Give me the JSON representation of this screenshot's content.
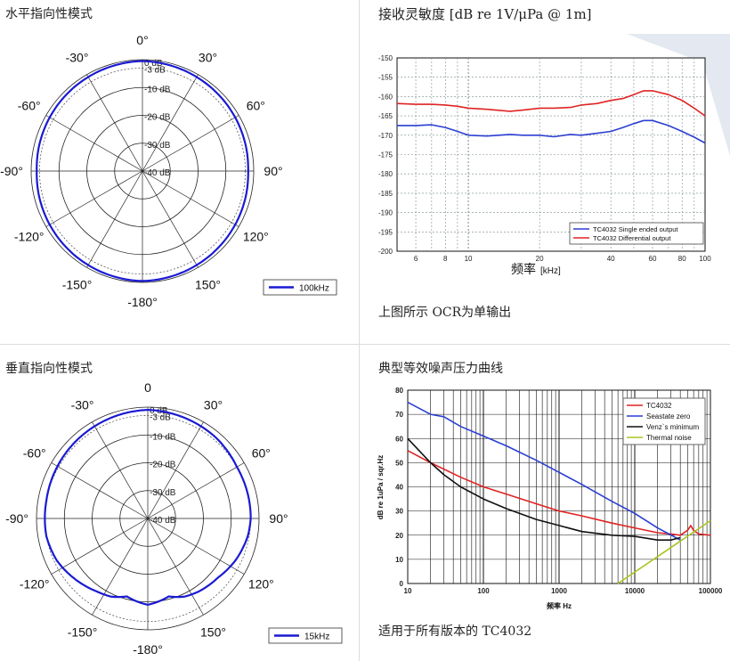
{
  "sections": {
    "horizontal": {
      "title": "水平指向性模式"
    },
    "sensitivity": {
      "title": "接收灵敏度 [dB re 1V/μPa @ 1m]",
      "caption": "上图所示 OCR为单输出"
    },
    "vertical": {
      "title": "垂直指向性模式"
    },
    "noise": {
      "title": "典型等效噪声压力曲线",
      "caption": "适用于所有版本的 TC4032"
    }
  },
  "chart_data": [
    {
      "type": "polar",
      "angle_labels": [
        "0°",
        "30°",
        "60°",
        "90°",
        "120°",
        "150°",
        "-180°",
        "-150°",
        "-120°",
        "-90°",
        "-60°",
        "-30°"
      ],
      "radial_labels": [
        "0 dB",
        "-3 dB",
        "-10 dB",
        "-20 dB",
        "-30 dB",
        "-40 dB"
      ],
      "rlim": [
        -40,
        0
      ],
      "series": [
        {
          "name": "100kHz",
          "color": "#1a1ad4",
          "angles": [
            0,
            30,
            60,
            90,
            120,
            150,
            180,
            210,
            240,
            270,
            300,
            330
          ],
          "values": [
            -0.5,
            -1,
            -1.5,
            -2,
            -1.5,
            -1,
            -0.5,
            -1,
            -1.5,
            -2,
            -1.5,
            -1
          ]
        }
      ]
    },
    {
      "type": "line",
      "x_scale": "log",
      "xlim": [
        5,
        100
      ],
      "ylim": [
        -200,
        -150
      ],
      "x_ticks": [
        6,
        8,
        10,
        20,
        40,
        60,
        80,
        100
      ],
      "y_ticks": [
        -150,
        -155,
        -160,
        -165,
        -170,
        -175,
        -180,
        -185,
        -190,
        -195,
        -200
      ],
      "xlabel": "频率",
      "xlabel_unit": "[kHz]",
      "legend_position": "bottom-right",
      "series": [
        {
          "name": "TC4032 Single ended output",
          "color": "#2b3fd1",
          "x": [
            5,
            6,
            7,
            8,
            9,
            10,
            12,
            15,
            17,
            20,
            23,
            27,
            30,
            35,
            40,
            45,
            50,
            55,
            60,
            70,
            80,
            90,
            100
          ],
          "y": [
            -167.5,
            -167.5,
            -167.3,
            -168,
            -169,
            -170,
            -170.2,
            -169.8,
            -170,
            -170,
            -170.4,
            -169.8,
            -170,
            -169.5,
            -169,
            -168,
            -167,
            -166.2,
            -166.2,
            -167.5,
            -169,
            -170.5,
            -172
          ]
        },
        {
          "name": "TC4032 Differential output",
          "color": "#e02323",
          "x": [
            5,
            6,
            7,
            8,
            9,
            10,
            12,
            15,
            17,
            20,
            23,
            27,
            30,
            35,
            40,
            45,
            50,
            55,
            60,
            70,
            80,
            90,
            100
          ],
          "y": [
            -161.8,
            -162,
            -162,
            -162.2,
            -162.5,
            -163,
            -163.3,
            -163.8,
            -163.5,
            -163,
            -163,
            -162.8,
            -162.2,
            -161.8,
            -161,
            -160.5,
            -159.5,
            -158.5,
            -158.5,
            -159.5,
            -161,
            -163,
            -165
          ]
        }
      ]
    },
    {
      "type": "polar",
      "angle_labels": [
        "0",
        "30°",
        "60°",
        "90°",
        "120°",
        "150°",
        "-180°",
        "-150°",
        "-120°",
        "-90°",
        "-60°",
        "-30°"
      ],
      "radial_labels": [
        "0 dB",
        "-3 dB",
        "-10 dB",
        "-20 dB",
        "-30 dB",
        "-40 dB"
      ],
      "rlim": [
        -40,
        0
      ],
      "series": [
        {
          "name": "15kHz",
          "color": "#1a1ad4",
          "angles": [
            0,
            20,
            40,
            60,
            80,
            90,
            100,
            115,
            130,
            145,
            155,
            165,
            172,
            180,
            188,
            195,
            205,
            215,
            230,
            245,
            260,
            270,
            280,
            300,
            320,
            340
          ],
          "values": [
            -1,
            -1.5,
            -2,
            -3,
            -3,
            -3,
            -3.5,
            -5,
            -7,
            -8,
            -9,
            -11,
            -10,
            -9,
            -10,
            -11,
            -9,
            -8,
            -6,
            -4,
            -3,
            -3,
            -3,
            -2.5,
            -2,
            -1.5
          ]
        }
      ]
    },
    {
      "type": "line",
      "x_scale": "log",
      "xlim": [
        10,
        100000
      ],
      "ylim": [
        0,
        80
      ],
      "x_ticks": [
        10,
        100,
        1000,
        10000,
        100000
      ],
      "y_ticks": [
        0,
        10,
        20,
        30,
        40,
        50,
        60,
        70,
        80
      ],
      "xlabel": "频率 Hz",
      "ylabel": "dB re 1uPa / sqr.Hz",
      "legend_position": "top-right",
      "series": [
        {
          "name": "TC4032",
          "color": "#e02323",
          "x": [
            10,
            20,
            50,
            100,
            200,
            500,
            1000,
            2000,
            5000,
            10000,
            20000,
            30000,
            40000,
            50000,
            55000,
            60000,
            70000,
            100000
          ],
          "y": [
            55,
            50,
            44,
            40,
            37,
            33,
            30,
            28,
            25,
            23,
            21,
            20.5,
            20,
            22,
            24,
            22,
            20.5,
            20
          ]
        },
        {
          "name": "Seastate zero",
          "color": "#2b3fd1",
          "x": [
            10,
            20,
            30,
            50,
            100,
            200,
            500,
            1000,
            2000,
            5000,
            10000,
            20000,
            40000
          ],
          "y": [
            75,
            70,
            69,
            65,
            61,
            57,
            51,
            46,
            41,
            34,
            29,
            23,
            18
          ]
        },
        {
          "name": "Venz`s minimum",
          "color": "#111111",
          "x": [
            10,
            20,
            30,
            50,
            100,
            200,
            500,
            1000,
            2000,
            5000,
            10000,
            20000,
            30000,
            40000
          ],
          "y": [
            60,
            50,
            45,
            40,
            35,
            31,
            26.5,
            24,
            21.5,
            20,
            19.5,
            18,
            18,
            19
          ]
        },
        {
          "name": "Thermal noise",
          "color": "#a7c520",
          "x": [
            6000,
            100000
          ],
          "y": [
            0,
            26
          ]
        }
      ]
    }
  ]
}
